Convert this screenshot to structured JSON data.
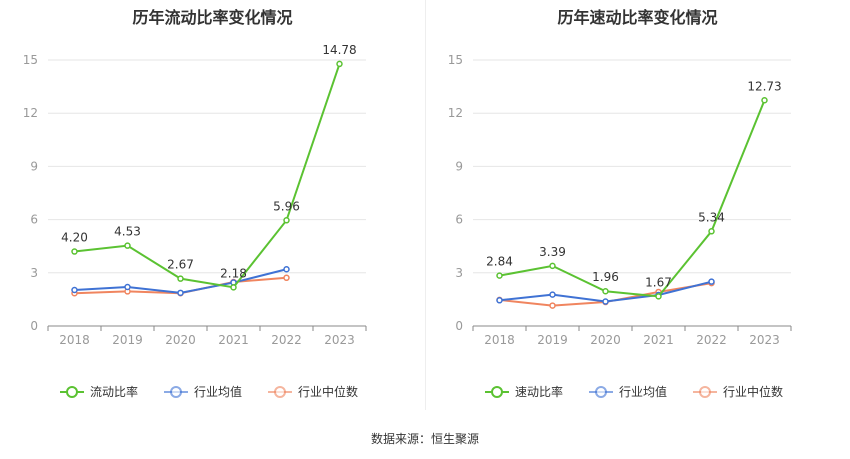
{
  "footer": "数据来源：恒生聚源",
  "chart_data": [
    {
      "type": "line",
      "title": "历年流动比率变化情况",
      "categories": [
        "2018",
        "2019",
        "2020",
        "2021",
        "2022",
        "2023"
      ],
      "y_ticks": [
        0,
        3,
        6,
        9,
        12,
        15
      ],
      "ylim": [
        0,
        15
      ],
      "grid": true,
      "legend_position": "bottom",
      "series": [
        {
          "name": "流动比率",
          "color": "#5bc232",
          "values": [
            4.2,
            4.53,
            2.67,
            2.18,
            5.96,
            14.78
          ],
          "labels": [
            "4.20",
            "4.53",
            "2.67",
            "2.18",
            "5.96",
            "14.78"
          ]
        },
        {
          "name": "行业均值",
          "color": "#3f72d4",
          "values": [
            2.03,
            2.2,
            1.87,
            2.45,
            3.2,
            null
          ]
        },
        {
          "name": "行业中位数",
          "color": "#f0855f",
          "values": [
            1.85,
            1.95,
            1.85,
            2.48,
            2.72,
            null
          ]
        }
      ]
    },
    {
      "type": "line",
      "title": "历年速动比率变化情况",
      "categories": [
        "2018",
        "2019",
        "2020",
        "2021",
        "2022",
        "2023"
      ],
      "y_ticks": [
        0,
        3,
        6,
        9,
        12,
        15
      ],
      "ylim": [
        0,
        15
      ],
      "grid": true,
      "legend_position": "bottom",
      "series": [
        {
          "name": "速动比率",
          "color": "#5bc232",
          "values": [
            2.84,
            3.39,
            1.96,
            1.67,
            5.34,
            12.73
          ],
          "labels": [
            "2.84",
            "3.39",
            "1.96",
            "1.67",
            "5.34",
            "12.73"
          ]
        },
        {
          "name": "行业均值",
          "color": "#3f72d4",
          "values": [
            1.45,
            1.77,
            1.38,
            1.75,
            2.5,
            null
          ]
        },
        {
          "name": "行业中位数",
          "color": "#f0855f",
          "values": [
            1.47,
            1.15,
            1.35,
            1.92,
            2.42,
            null
          ]
        }
      ]
    }
  ]
}
